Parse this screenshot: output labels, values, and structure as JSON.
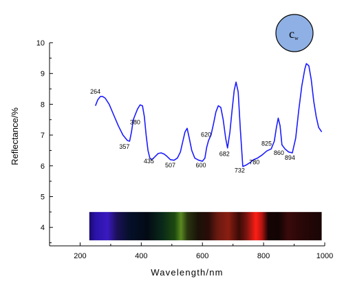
{
  "chart_data": {
    "type": "line",
    "xlabel": "Wavelength/nm",
    "ylabel": "Reflectance/%",
    "xlim": [
      100,
      1000
    ],
    "ylim": [
      3.4,
      10
    ],
    "x_ticks": [
      200,
      400,
      600,
      800,
      1000
    ],
    "y_ticks": [
      4,
      5,
      6,
      7,
      8,
      9,
      10
    ],
    "grid": false,
    "badge": {
      "text": "c",
      "subscript": "w",
      "color": "#8fb0e4"
    },
    "series": [
      {
        "color": "#1a1aff",
        "x": [
          250,
          258,
          266,
          274,
          282,
          295,
          310,
          325,
          340,
          355,
          362,
          368,
          374,
          380,
          388,
          396,
          404,
          410,
          416,
          422,
          428,
          435,
          445,
          455,
          465,
          475,
          485,
          495,
          507,
          518,
          528,
          536,
          543,
          550,
          557,
          565,
          575,
          588,
          600,
          608,
          614,
          620,
          628,
          636,
          644,
          652,
          660,
          668,
          676,
          682,
          690,
          697,
          704,
          710,
          717,
          724,
          732,
          742,
          755,
          768,
          780,
          795,
          810,
          825,
          835,
          842,
          848,
          854,
          860,
          870,
          882,
          894,
          905,
          915,
          925,
          935,
          940,
          948,
          956,
          964,
          972,
          980,
          990
        ],
        "y": [
          7.95,
          8.15,
          8.25,
          8.25,
          8.2,
          8.0,
          7.65,
          7.3,
          7.0,
          6.82,
          6.8,
          7.1,
          7.5,
          7.65,
          7.85,
          7.98,
          7.95,
          7.6,
          7.0,
          6.5,
          6.25,
          6.2,
          6.3,
          6.4,
          6.42,
          6.38,
          6.3,
          6.2,
          6.18,
          6.25,
          6.45,
          6.8,
          7.1,
          7.22,
          6.9,
          6.5,
          6.25,
          6.18,
          6.15,
          6.25,
          6.6,
          6.82,
          7.0,
          7.35,
          7.75,
          7.95,
          7.9,
          7.5,
          6.9,
          6.58,
          7.1,
          7.8,
          8.45,
          8.72,
          8.4,
          7.2,
          5.98,
          6.02,
          6.1,
          6.2,
          6.25,
          6.35,
          6.48,
          6.55,
          6.8,
          7.25,
          7.55,
          7.3,
          6.68,
          6.55,
          6.45,
          6.42,
          6.9,
          7.8,
          8.6,
          9.15,
          9.32,
          9.25,
          8.8,
          8.1,
          7.6,
          7.25,
          7.1
        ]
      }
    ],
    "peak_labels": [
      {
        "text": "264",
        "x": 250,
        "y": 8.35
      },
      {
        "text": "357",
        "x": 345,
        "y": 6.55
      },
      {
        "text": "380",
        "x": 380,
        "y": 7.35
      },
      {
        "text": "435",
        "x": 425,
        "y": 6.08
      },
      {
        "text": "507",
        "x": 495,
        "y": 5.95
      },
      {
        "text": "600",
        "x": 595,
        "y": 5.95
      },
      {
        "text": "620",
        "x": 612,
        "y": 6.95
      },
      {
        "text": "682",
        "x": 672,
        "y": 6.32
      },
      {
        "text": "732",
        "x": 722,
        "y": 5.78
      },
      {
        "text": "780",
        "x": 770,
        "y": 6.05
      },
      {
        "text": "825",
        "x": 810,
        "y": 6.65
      },
      {
        "text": "860",
        "x": 850,
        "y": 6.35
      },
      {
        "text": "894",
        "x": 886,
        "y": 6.2
      }
    ],
    "spectrum_strip": {
      "x_range": [
        230,
        990
      ],
      "y_range": [
        3.58,
        4.5
      ],
      "stops": [
        {
          "x": 230,
          "color": "#1c0a6a"
        },
        {
          "x": 250,
          "color": "#2a12a8"
        },
        {
          "x": 290,
          "color": "#3a1ac0"
        },
        {
          "x": 320,
          "color": "#1c1058"
        },
        {
          "x": 360,
          "color": "#05102a"
        },
        {
          "x": 420,
          "color": "#020a14"
        },
        {
          "x": 470,
          "color": "#0a2a18"
        },
        {
          "x": 510,
          "color": "#1e4a10"
        },
        {
          "x": 530,
          "color": "#5a8a20"
        },
        {
          "x": 550,
          "color": "#2a3810"
        },
        {
          "x": 585,
          "color": "#1a1208"
        },
        {
          "x": 620,
          "color": "#2a0c08"
        },
        {
          "x": 650,
          "color": "#6a1a10"
        },
        {
          "x": 685,
          "color": "#8a1e12"
        },
        {
          "x": 720,
          "color": "#3a0a06"
        },
        {
          "x": 745,
          "color": "#7a1410"
        },
        {
          "x": 775,
          "color": "#ff1e14"
        },
        {
          "x": 795,
          "color": "#b01410"
        },
        {
          "x": 815,
          "color": "#160404"
        },
        {
          "x": 850,
          "color": "#120404"
        },
        {
          "x": 880,
          "color": "#3a0a0a"
        },
        {
          "x": 920,
          "color": "#2a0808"
        },
        {
          "x": 960,
          "color": "#200606"
        },
        {
          "x": 990,
          "color": "#1a0505"
        }
      ]
    }
  }
}
